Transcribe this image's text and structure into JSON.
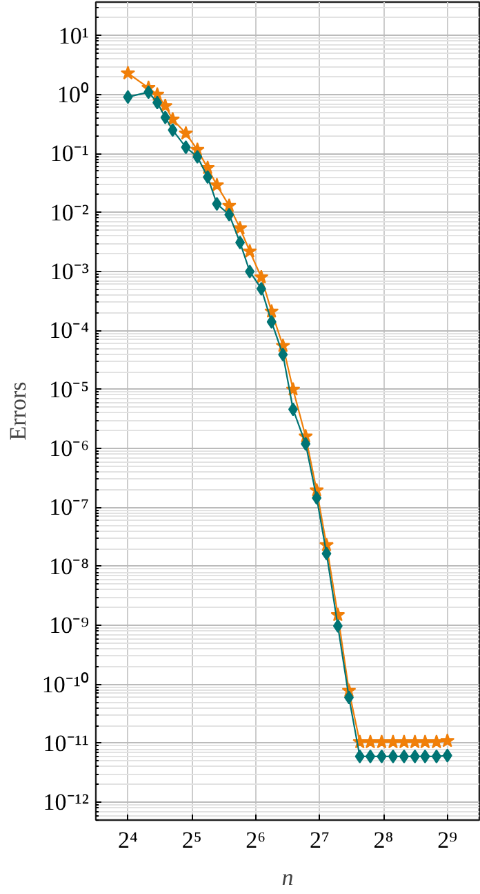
{
  "chart_data": {
    "type": "line",
    "xlabel": "n",
    "ylabel": "Errors",
    "log": "xy",
    "grid": true,
    "xlim": [
      11.3,
      724
    ],
    "ylim": [
      5e-13,
      37
    ],
    "xticks": [
      {
        "value": 16,
        "label": "2⁴"
      },
      {
        "value": 32,
        "label": "2⁵"
      },
      {
        "value": 64,
        "label": "2⁶"
      },
      {
        "value": 128,
        "label": "2⁷"
      },
      {
        "value": 256,
        "label": "2⁸"
      },
      {
        "value": 512,
        "label": "2⁹"
      }
    ],
    "yticks": [
      {
        "value": 10,
        "label": "10¹"
      },
      {
        "value": 1,
        "label": "10⁰"
      },
      {
        "value": 0.1,
        "label": "10⁻¹"
      },
      {
        "value": 0.01,
        "label": "10⁻²"
      },
      {
        "value": 0.001,
        "label": "10⁻³"
      },
      {
        "value": 0.0001,
        "label": "10⁻⁴"
      },
      {
        "value": 1e-05,
        "label": "10⁻⁵"
      },
      {
        "value": 1e-06,
        "label": "10⁻⁶"
      },
      {
        "value": 1e-07,
        "label": "10⁻⁷"
      },
      {
        "value": 1e-08,
        "label": "10⁻⁸"
      },
      {
        "value": 1e-09,
        "label": "10⁻⁹"
      },
      {
        "value": 1e-10,
        "label": "10⁻¹⁰"
      },
      {
        "value": 1e-11,
        "label": "10⁻¹¹"
      },
      {
        "value": 1e-12,
        "label": "10⁻¹²"
      }
    ],
    "x": [
      16,
      20,
      22,
      24,
      26,
      30,
      34,
      38,
      42,
      48,
      54,
      60,
      68,
      76,
      86,
      96,
      110,
      124,
      138,
      156,
      176,
      198,
      222,
      251,
      284,
      320,
      360,
      402,
      455,
      512
    ],
    "series": [
      {
        "color": "#f07f09",
        "marker": "star",
        "values": [
          2.3,
          1.3,
          1.0,
          0.64,
          0.38,
          0.22,
          0.116,
          0.057,
          0.029,
          0.013,
          0.0054,
          0.0022,
          0.0008,
          0.00021,
          5.5e-05,
          1e-05,
          1.6e-06,
          1.95e-07,
          2.3e-08,
          1.5e-09,
          7.8e-11,
          1.05e-11,
          1.05e-11,
          1.05e-11,
          1.05e-11,
          1.05e-11,
          1.05e-11,
          1.05e-11,
          1.05e-11,
          1.1e-11
        ]
      },
      {
        "color": "#007474",
        "marker": "diamond",
        "values": [
          0.91,
          1.1,
          0.73,
          0.41,
          0.25,
          0.128,
          0.088,
          0.04,
          0.014,
          0.0092,
          0.0031,
          0.001,
          0.00051,
          0.00014,
          3.9e-05,
          4.6e-06,
          1.2e-06,
          1.45e-07,
          1.65e-08,
          9.8e-10,
          6e-11,
          6e-12,
          6e-12,
          6e-12,
          6e-12,
          6e-12,
          6e-12,
          6e-12,
          6e-12,
          6.2e-12
        ]
      }
    ]
  }
}
